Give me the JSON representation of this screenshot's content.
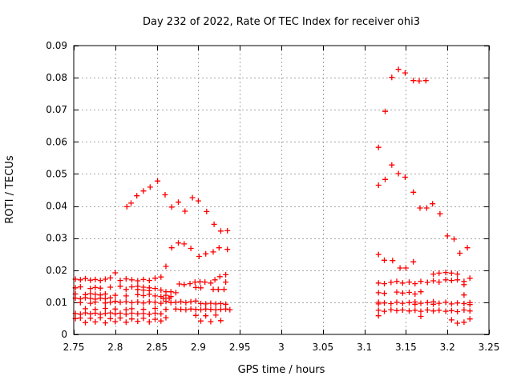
{
  "page": {
    "background_color": "#ffffff"
  },
  "chart_data": {
    "type": "scatter",
    "title": "Day 232 of 2022, Rate Of TEC Index for receiver ohi3",
    "xlabel": "GPS time / hours",
    "ylabel": "ROTI / TECUs",
    "xlim": [
      2.75,
      3.25
    ],
    "ylim": [
      0,
      0.09
    ],
    "xticks": [
      2.75,
      2.8,
      2.85,
      2.9,
      2.95,
      3.0,
      3.05,
      3.1,
      3.15,
      3.2,
      3.25
    ],
    "xtick_labels": [
      "2.75",
      "2.8",
      "2.85",
      "2.9",
      "2.95",
      "3",
      "3.05",
      "3.1",
      "3.15",
      "3.2",
      "3.25"
    ],
    "yticks": [
      0,
      0.01,
      0.02,
      0.03,
      0.04,
      0.05,
      0.06,
      0.07,
      0.08,
      0.09
    ],
    "ytick_labels": [
      "0",
      "0.01",
      "0.02",
      "0.03",
      "0.04",
      "0.05",
      "0.06",
      "0.07",
      "0.08",
      "0.09"
    ],
    "grid": true,
    "legend_position": "none",
    "marker": "plus",
    "colors": {
      "marker": "#ff0000",
      "grid": "#a6a6a6",
      "axis": "#000000",
      "text": "#000000"
    },
    "points": [
      [
        2.752,
        0.0172
      ],
      [
        2.758,
        0.017
      ],
      [
        2.764,
        0.0174
      ],
      [
        2.77,
        0.0169
      ],
      [
        2.776,
        0.0171
      ],
      [
        2.782,
        0.0168
      ],
      [
        2.788,
        0.0172
      ],
      [
        2.794,
        0.0176
      ],
      [
        2.8,
        0.0192
      ],
      [
        2.806,
        0.0168
      ],
      [
        2.813,
        0.0173
      ],
      [
        2.82,
        0.017
      ],
      [
        2.827,
        0.0167
      ],
      [
        2.834,
        0.0171
      ],
      [
        2.841,
        0.0168
      ],
      [
        2.848,
        0.0175
      ],
      [
        2.855,
        0.0179
      ],
      [
        2.877,
        0.0157
      ],
      [
        2.883,
        0.0155
      ],
      [
        2.89,
        0.0158
      ],
      [
        2.896,
        0.0163
      ],
      [
        2.902,
        0.0164
      ],
      [
        2.908,
        0.0163
      ],
      [
        2.915,
        0.016
      ],
      [
        2.92,
        0.017
      ],
      [
        2.926,
        0.018
      ],
      [
        2.933,
        0.0186
      ],
      [
        2.933,
        0.0163
      ],
      [
        2.752,
        0.0145
      ],
      [
        2.758,
        0.0148
      ],
      [
        2.77,
        0.0143
      ],
      [
        2.776,
        0.0146
      ],
      [
        2.782,
        0.0144
      ],
      [
        2.794,
        0.0147
      ],
      [
        2.806,
        0.015
      ],
      [
        2.813,
        0.014
      ],
      [
        2.82,
        0.0148
      ],
      [
        2.827,
        0.015
      ],
      [
        2.827,
        0.014
      ],
      [
        2.834,
        0.0147
      ],
      [
        2.834,
        0.0138
      ],
      [
        2.841,
        0.0145
      ],
      [
        2.841,
        0.0136
      ],
      [
        2.848,
        0.0143
      ],
      [
        2.855,
        0.0138
      ],
      [
        2.861,
        0.0133
      ],
      [
        2.867,
        0.0133
      ],
      [
        2.873,
        0.013
      ],
      [
        2.897,
        0.0146
      ],
      [
        2.903,
        0.0145
      ],
      [
        2.918,
        0.014
      ],
      [
        2.924,
        0.014
      ],
      [
        2.931,
        0.014
      ],
      [
        2.752,
        0.0126
      ],
      [
        2.764,
        0.0124
      ],
      [
        2.77,
        0.0127
      ],
      [
        2.776,
        0.0125
      ],
      [
        2.782,
        0.0123
      ],
      [
        2.788,
        0.0126
      ],
      [
        2.8,
        0.0122
      ],
      [
        2.813,
        0.012
      ],
      [
        2.827,
        0.0124
      ],
      [
        2.834,
        0.0121
      ],
      [
        2.841,
        0.0125
      ],
      [
        2.848,
        0.012
      ],
      [
        2.855,
        0.0118
      ],
      [
        2.861,
        0.0122
      ],
      [
        2.867,
        0.0118
      ],
      [
        2.752,
        0.0113
      ],
      [
        2.758,
        0.0111
      ],
      [
        2.764,
        0.0114
      ],
      [
        2.77,
        0.0112
      ],
      [
        2.776,
        0.011
      ],
      [
        2.782,
        0.0113
      ],
      [
        2.788,
        0.0111
      ],
      [
        2.794,
        0.0114
      ],
      [
        2.858,
        0.0112
      ],
      [
        2.865,
        0.0113
      ],
      [
        2.758,
        0.0099
      ],
      [
        2.77,
        0.0097
      ],
      [
        2.776,
        0.0101
      ],
      [
        2.788,
        0.0098
      ],
      [
        2.794,
        0.01
      ],
      [
        2.8,
        0.0103
      ],
      [
        2.806,
        0.01
      ],
      [
        2.813,
        0.0102
      ],
      [
        2.82,
        0.0099
      ],
      [
        2.827,
        0.0101
      ],
      [
        2.834,
        0.0098
      ],
      [
        2.841,
        0.0102
      ],
      [
        2.848,
        0.01
      ],
      [
        2.855,
        0.0097
      ],
      [
        2.861,
        0.0103
      ],
      [
        2.867,
        0.0099
      ],
      [
        2.873,
        0.01
      ],
      [
        2.879,
        0.0102
      ],
      [
        2.885,
        0.0099
      ],
      [
        2.891,
        0.0102
      ],
      [
        2.897,
        0.0104
      ],
      [
        2.903,
        0.0096
      ],
      [
        2.909,
        0.0095
      ],
      [
        2.915,
        0.0097
      ],
      [
        2.921,
        0.0095
      ],
      [
        2.927,
        0.0096
      ],
      [
        2.933,
        0.0094
      ],
      [
        2.764,
        0.008
      ],
      [
        2.776,
        0.0078
      ],
      [
        2.788,
        0.0081
      ],
      [
        2.8,
        0.0079
      ],
      [
        2.813,
        0.0077
      ],
      [
        2.82,
        0.008
      ],
      [
        2.834,
        0.0078
      ],
      [
        2.848,
        0.0081
      ],
      [
        2.861,
        0.0078
      ],
      [
        2.873,
        0.0079
      ],
      [
        2.879,
        0.0078
      ],
      [
        2.885,
        0.0077
      ],
      [
        2.891,
        0.0079
      ],
      [
        2.897,
        0.0078
      ],
      [
        2.903,
        0.0077
      ],
      [
        2.909,
        0.0079
      ],
      [
        2.915,
        0.0078
      ],
      [
        2.921,
        0.0077
      ],
      [
        2.927,
        0.0078
      ],
      [
        2.933,
        0.0079
      ],
      [
        2.938,
        0.0077
      ],
      [
        2.752,
        0.0065
      ],
      [
        2.758,
        0.0063
      ],
      [
        2.764,
        0.0067
      ],
      [
        2.77,
        0.0064
      ],
      [
        2.776,
        0.0066
      ],
      [
        2.782,
        0.0063
      ],
      [
        2.788,
        0.0065
      ],
      [
        2.794,
        0.0067
      ],
      [
        2.8,
        0.0064
      ],
      [
        2.806,
        0.0066
      ],
      [
        2.813,
        0.0063
      ],
      [
        2.82,
        0.0066
      ],
      [
        2.827,
        0.0064
      ],
      [
        2.834,
        0.0065
      ],
      [
        2.841,
        0.0063
      ],
      [
        2.848,
        0.0066
      ],
      [
        2.855,
        0.0064
      ],
      [
        2.752,
        0.0049
      ],
      [
        2.758,
        0.0051
      ],
      [
        2.77,
        0.005
      ],
      [
        2.782,
        0.0052
      ],
      [
        2.794,
        0.0049
      ],
      [
        2.806,
        0.0051
      ],
      [
        2.82,
        0.0048
      ],
      [
        2.834,
        0.005
      ],
      [
        2.848,
        0.0047
      ],
      [
        2.861,
        0.0052
      ],
      [
        2.897,
        0.0059
      ],
      [
        2.909,
        0.0058
      ],
      [
        2.921,
        0.006
      ],
      [
        2.764,
        0.0037
      ],
      [
        2.776,
        0.0039
      ],
      [
        2.788,
        0.0036
      ],
      [
        2.8,
        0.004
      ],
      [
        2.813,
        0.0038
      ],
      [
        2.827,
        0.0041
      ],
      [
        2.841,
        0.0039
      ],
      [
        2.855,
        0.0042
      ],
      [
        2.903,
        0.0042
      ],
      [
        2.915,
        0.004
      ],
      [
        2.927,
        0.0043
      ],
      [
        2.814,
        0.0398
      ],
      [
        2.819,
        0.0409
      ],
      [
        2.826,
        0.0432
      ],
      [
        2.834,
        0.0447
      ],
      [
        2.842,
        0.0459
      ],
      [
        2.851,
        0.0478
      ],
      [
        2.86,
        0.0435
      ],
      [
        2.868,
        0.0397
      ],
      [
        2.876,
        0.0412
      ],
      [
        2.884,
        0.0384
      ],
      [
        2.893,
        0.0426
      ],
      [
        2.9,
        0.0416
      ],
      [
        2.91,
        0.0383
      ],
      [
        2.919,
        0.0343
      ],
      [
        2.927,
        0.0322
      ],
      [
        2.935,
        0.0323
      ],
      [
        2.868,
        0.027
      ],
      [
        2.876,
        0.0285
      ],
      [
        2.883,
        0.0282
      ],
      [
        2.891,
        0.0268
      ],
      [
        2.901,
        0.0243
      ],
      [
        2.909,
        0.0251
      ],
      [
        2.918,
        0.0257
      ],
      [
        2.925,
        0.027
      ],
      [
        2.935,
        0.0265
      ],
      [
        2.861,
        0.0212
      ],
      [
        3.117,
        0.0583
      ],
      [
        3.125,
        0.0695
      ],
      [
        3.133,
        0.0801
      ],
      [
        3.141,
        0.0826
      ],
      [
        3.149,
        0.0815
      ],
      [
        3.159,
        0.0791
      ],
      [
        3.166,
        0.079
      ],
      [
        3.174,
        0.0791
      ],
      [
        3.117,
        0.0465
      ],
      [
        3.125,
        0.0483
      ],
      [
        3.133,
        0.0528
      ],
      [
        3.141,
        0.0501
      ],
      [
        3.149,
        0.049
      ],
      [
        3.159,
        0.0443
      ],
      [
        3.167,
        0.0394
      ],
      [
        3.175,
        0.0394
      ],
      [
        3.182,
        0.0407
      ],
      [
        3.191,
        0.0376
      ],
      [
        3.2,
        0.0307
      ],
      [
        3.208,
        0.0297
      ],
      [
        3.215,
        0.0253
      ],
      [
        3.224,
        0.027
      ],
      [
        3.117,
        0.0249
      ],
      [
        3.124,
        0.0231
      ],
      [
        3.134,
        0.023
      ],
      [
        3.143,
        0.0207
      ],
      [
        3.15,
        0.0207
      ],
      [
        3.159,
        0.0226
      ],
      [
        3.183,
        0.0188
      ],
      [
        3.19,
        0.0191
      ],
      [
        3.198,
        0.0193
      ],
      [
        3.205,
        0.0191
      ],
      [
        3.212,
        0.0188
      ],
      [
        3.117,
        0.016
      ],
      [
        3.124,
        0.0158
      ],
      [
        3.132,
        0.0162
      ],
      [
        3.139,
        0.0165
      ],
      [
        3.146,
        0.016
      ],
      [
        3.154,
        0.0163
      ],
      [
        3.161,
        0.0158
      ],
      [
        3.168,
        0.0165
      ],
      [
        3.176,
        0.0162
      ],
      [
        3.183,
        0.0167
      ],
      [
        3.19,
        0.0163
      ],
      [
        3.198,
        0.017
      ],
      [
        3.205,
        0.0168
      ],
      [
        3.212,
        0.017
      ],
      [
        3.22,
        0.0165
      ],
      [
        3.22,
        0.0155
      ],
      [
        3.227,
        0.0175
      ],
      [
        3.117,
        0.013
      ],
      [
        3.124,
        0.0128
      ],
      [
        3.139,
        0.0132
      ],
      [
        3.146,
        0.0129
      ],
      [
        3.154,
        0.0131
      ],
      [
        3.161,
        0.0126
      ],
      [
        3.168,
        0.0133
      ],
      [
        3.22,
        0.0123
      ],
      [
        3.117,
        0.01
      ],
      [
        3.117,
        0.0095
      ],
      [
        3.124,
        0.0098
      ],
      [
        3.132,
        0.0096
      ],
      [
        3.139,
        0.01
      ],
      [
        3.146,
        0.0097
      ],
      [
        3.154,
        0.0099
      ],
      [
        3.161,
        0.0101
      ],
      [
        3.161,
        0.0094
      ],
      [
        3.168,
        0.0097
      ],
      [
        3.176,
        0.0099
      ],
      [
        3.183,
        0.0102
      ],
      [
        3.183,
        0.0094
      ],
      [
        3.19,
        0.0097
      ],
      [
        3.198,
        0.01
      ],
      [
        3.205,
        0.0095
      ],
      [
        3.212,
        0.0098
      ],
      [
        3.22,
        0.0096
      ],
      [
        3.227,
        0.0099
      ],
      [
        3.227,
        0.0093
      ],
      [
        3.117,
        0.0075
      ],
      [
        3.124,
        0.0072
      ],
      [
        3.132,
        0.0077
      ],
      [
        3.139,
        0.0074
      ],
      [
        3.146,
        0.0076
      ],
      [
        3.154,
        0.0073
      ],
      [
        3.161,
        0.0075
      ],
      [
        3.168,
        0.0072
      ],
      [
        3.176,
        0.0076
      ],
      [
        3.183,
        0.0073
      ],
      [
        3.19,
        0.0075
      ],
      [
        3.198,
        0.0072
      ],
      [
        3.205,
        0.0074
      ],
      [
        3.212,
        0.0071
      ],
      [
        3.22,
        0.0076
      ],
      [
        3.227,
        0.0073
      ],
      [
        3.117,
        0.0058
      ],
      [
        3.168,
        0.0056
      ],
      [
        3.205,
        0.0045
      ],
      [
        3.212,
        0.0035
      ],
      [
        3.22,
        0.0038
      ],
      [
        3.227,
        0.0048
      ]
    ]
  }
}
